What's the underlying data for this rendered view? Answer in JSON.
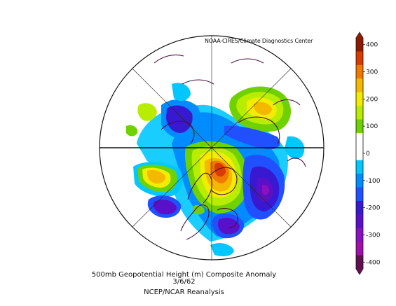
{
  "credit": "NOAA-CIRES/Climate Diagnostics Center",
  "caption": {
    "line1": "500mb Geopotential Height (m) Composite Anomaly",
    "line2": "3/6/62",
    "line3": "NCEP/NCAR Reanalysis"
  },
  "legend": {
    "labels": [
      "400",
      "300",
      "200",
      "100",
      "0",
      "-100",
      "-200",
      "-300",
      "-400"
    ],
    "colors": [
      "#8b1a00",
      "#d83a00",
      "#f07a00",
      "#f5b800",
      "#f2ec00",
      "#b8ec00",
      "#6fd200",
      "#ffffff",
      "#ffffff",
      "#00c8ff",
      "#008cff",
      "#2050ff",
      "#3818d0",
      "#5a10c8",
      "#8a10c0",
      "#a010a8",
      "#601050"
    ]
  }
}
